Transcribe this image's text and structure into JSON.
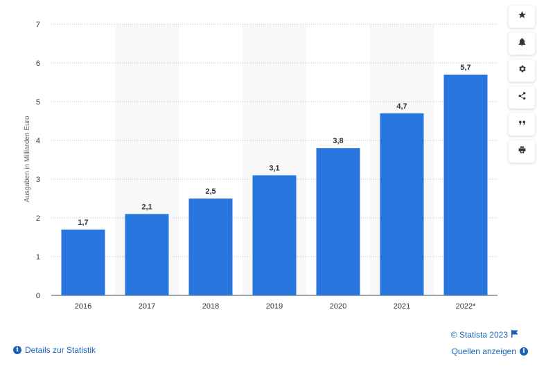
{
  "chart_data": {
    "type": "bar",
    "categories": [
      "2016",
      "2017",
      "2018",
      "2019",
      "2020",
      "2021",
      "2022*"
    ],
    "values": [
      1.7,
      2.1,
      2.5,
      3.1,
      3.8,
      4.7,
      5.7
    ],
    "value_labels": [
      "1,7",
      "2,1",
      "2,5",
      "3,1",
      "3,8",
      "4,7",
      "5,7"
    ],
    "title": "",
    "xlabel": "",
    "ylabel": "Ausgaben in Milliarden Euro",
    "ylim": [
      0,
      7
    ],
    "yticks": [
      "0",
      "1",
      "2",
      "3",
      "4",
      "5",
      "6",
      "7"
    ],
    "grid": true,
    "bar_color": "#2876dd",
    "band_color": "#f7f7f7"
  },
  "toolbar": {
    "buttons": [
      {
        "icon": "star-icon"
      },
      {
        "icon": "bell-icon"
      },
      {
        "icon": "gear-icon"
      },
      {
        "icon": "share-icon"
      },
      {
        "icon": "quote-icon"
      },
      {
        "icon": "print-icon"
      }
    ]
  },
  "footer": {
    "copyright": "© Statista 2023",
    "details": "Details zur Statistik",
    "sources": "Quellen anzeigen"
  }
}
